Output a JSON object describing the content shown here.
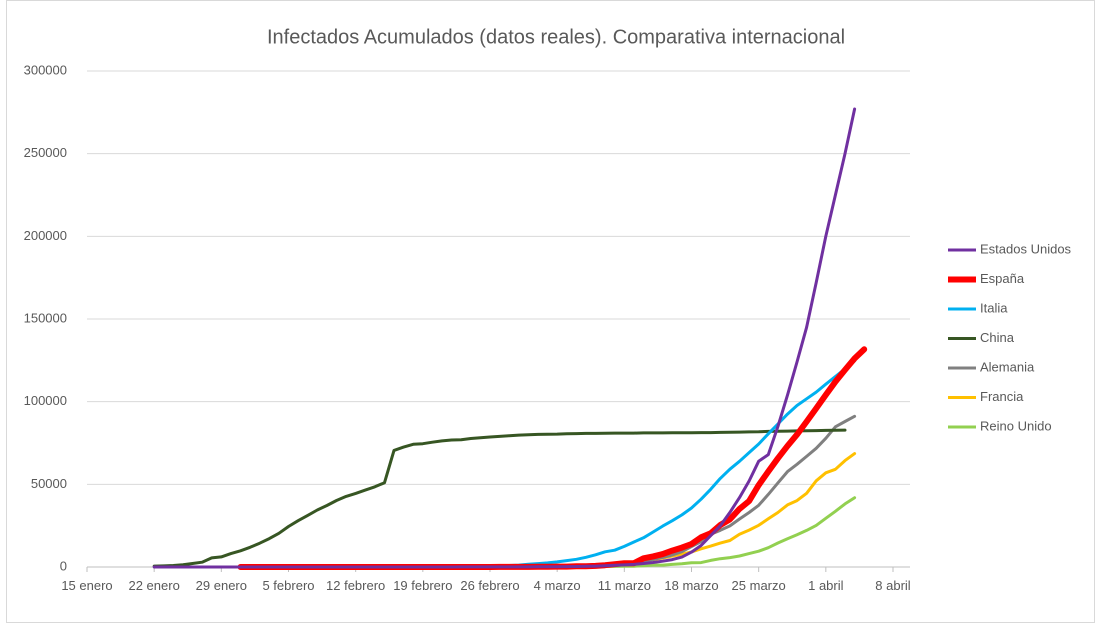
{
  "chart_data": {
    "type": "line",
    "title": "Infectados Acumulados (datos reales). Comparativa internacional",
    "categories": [
      "15 enero",
      null,
      null,
      null,
      null,
      null,
      null,
      "22 enero",
      null,
      null,
      null,
      null,
      null,
      null,
      "29 enero",
      null,
      null,
      null,
      null,
      null,
      null,
      "5 febrero",
      null,
      null,
      null,
      null,
      null,
      null,
      "12 febrero",
      null,
      null,
      null,
      null,
      null,
      null,
      "19 febrero",
      null,
      null,
      null,
      null,
      null,
      null,
      "26 febrero",
      null,
      null,
      null,
      null,
      null,
      null,
      "4 marzo",
      null,
      null,
      null,
      null,
      null,
      null,
      "11 marzo",
      null,
      null,
      null,
      null,
      null,
      null,
      "18 marzo",
      null,
      null,
      null,
      null,
      null,
      null,
      "25 marzo",
      null,
      null,
      null,
      null,
      null,
      null,
      "1 abril",
      null,
      null,
      null,
      null,
      null,
      null,
      "8 abril"
    ],
    "ylim": [
      0,
      300000
    ],
    "yticks": [
      0,
      50000,
      100000,
      150000,
      200000,
      250000,
      300000
    ],
    "grid": true,
    "legend": "right",
    "series": [
      {
        "name": "Estados Unidos",
        "color": "#7030a0",
        "line_width": 3,
        "values": [
          null,
          null,
          null,
          null,
          null,
          null,
          null,
          1,
          1,
          2,
          2,
          5,
          5,
          5,
          5,
          5,
          6,
          7,
          8,
          11,
          11,
          11,
          12,
          12,
          12,
          12,
          12,
          13,
          13,
          14,
          14,
          15,
          15,
          15,
          15,
          15,
          15,
          15,
          15,
          35,
          35,
          35,
          53,
          57,
          60,
          60,
          75,
          100,
          120,
          160,
          220,
          320,
          430,
          540,
          700,
          1000,
          1300,
          1600,
          2100,
          2700,
          3500,
          4500,
          6000,
          9000,
          13000,
          19000,
          25000,
          33000,
          42000,
          52000,
          64000,
          68000,
          85000,
          104000,
          124000,
          145000,
          172000,
          200000,
          225000,
          250000,
          277000,
          null,
          null,
          null,
          null
        ]
      },
      {
        "name": "España",
        "color": "#ff0000",
        "line_width": 6,
        "values": [
          null,
          null,
          null,
          null,
          null,
          null,
          null,
          null,
          null,
          null,
          null,
          null,
          null,
          null,
          null,
          null,
          1,
          1,
          1,
          1,
          1,
          1,
          1,
          1,
          1,
          2,
          2,
          2,
          2,
          2,
          2,
          2,
          2,
          2,
          2,
          2,
          2,
          2,
          2,
          2,
          6,
          13,
          15,
          32,
          45,
          66,
          84,
          120,
          165,
          222,
          259,
          400,
          500,
          673,
          1073,
          1695,
          2277,
          2277,
          5232,
          6391,
          7798,
          9942,
          11748,
          13910,
          17963,
          20410,
          25374,
          28768,
          35136,
          39885,
          49515,
          57786,
          65719,
          73235,
          80110,
          87956,
          95923,
          104118,
          112065,
          119199,
          126168,
          131646,
          null,
          null,
          null
        ]
      },
      {
        "name": "Italia",
        "color": "#00b0f0",
        "line_width": 3,
        "values": [
          null,
          null,
          null,
          null,
          null,
          null,
          null,
          null,
          null,
          null,
          null,
          null,
          null,
          null,
          null,
          null,
          3,
          3,
          3,
          3,
          3,
          3,
          3,
          3,
          3,
          3,
          3,
          3,
          3,
          3,
          3,
          3,
          3,
          3,
          3,
          3,
          3,
          20,
          62,
          155,
          229,
          322,
          453,
          655,
          888,
          1128,
          1694,
          2036,
          2502,
          3089,
          3858,
          4636,
          5883,
          7375,
          9172,
          10149,
          12462,
          15113,
          17660,
          21157,
          24747,
          27980,
          31506,
          35713,
          41035,
          47021,
          53578,
          59138,
          63927,
          69176,
          74386,
          80589,
          86498,
          92472,
          97689,
          101739,
          105792,
          110574,
          115242,
          119827,
          124632,
          null,
          null,
          null,
          null
        ]
      },
      {
        "name": "China",
        "color": "#375623",
        "line_width": 3,
        "values": [
          null,
          null,
          null,
          null,
          null,
          null,
          null,
          550,
          650,
          900,
          1400,
          2100,
          2900,
          5500,
          6100,
          8100,
          9800,
          11900,
          14400,
          17200,
          20400,
          24500,
          28000,
          31200,
          34500,
          37200,
          40200,
          42700,
          44500,
          46500,
          48500,
          51000,
          70500,
          72500,
          74200,
          74600,
          75500,
          76300,
          76800,
          77000,
          77700,
          78200,
          78600,
          79000,
          79400,
          79800,
          80000,
          80200,
          80300,
          80400,
          80600,
          80700,
          80800,
          80800,
          80900,
          81000,
          81000,
          81000,
          81100,
          81100,
          81100,
          81200,
          81200,
          81200,
          81300,
          81300,
          81400,
          81500,
          81600,
          81700,
          81800,
          82000,
          82100,
          82200,
          82300,
          82400,
          82500,
          82600,
          82700,
          82800,
          null,
          null,
          null,
          null,
          null
        ]
      },
      {
        "name": "Alemania",
        "color": "#808080",
        "line_width": 3,
        "values": [
          null,
          null,
          null,
          null,
          null,
          null,
          null,
          null,
          null,
          null,
          null,
          null,
          1,
          4,
          4,
          4,
          5,
          8,
          10,
          12,
          12,
          12,
          12,
          13,
          14,
          14,
          16,
          16,
          16,
          16,
          16,
          16,
          16,
          16,
          16,
          16,
          16,
          16,
          16,
          16,
          16,
          18,
          27,
          46,
          48,
          79,
          130,
          159,
          196,
          262,
          482,
          670,
          799,
          1040,
          1176,
          1457,
          1908,
          2078,
          3675,
          4585,
          5795,
          7272,
          9257,
          12327,
          15320,
          19848,
          22213,
          24873,
          29056,
          32986,
          37323,
          43938,
          50871,
          57695,
          62095,
          66885,
          71808,
          77872,
          84794,
          88000,
          91159,
          null,
          null,
          null,
          null
        ]
      },
      {
        "name": "Francia",
        "color": "#ffc000",
        "line_width": 3,
        "values": [
          null,
          null,
          null,
          null,
          null,
          null,
          null,
          null,
          null,
          2,
          3,
          3,
          3,
          4,
          5,
          5,
          5,
          6,
          6,
          6,
          6,
          6,
          6,
          11,
          11,
          11,
          11,
          11,
          11,
          11,
          12,
          12,
          12,
          12,
          12,
          12,
          12,
          12,
          12,
          12,
          12,
          14,
          18,
          38,
          57,
          100,
          130,
          191,
          204,
          285,
          377,
          653,
          949,
          1126,
          1209,
          1784,
          2281,
          2876,
          3661,
          4499,
          5423,
          6633,
          7730,
          9134,
          10995,
          12612,
          14459,
          16018,
          19856,
          22304,
          25233,
          29155,
          32964,
          37575,
          40174,
          44550,
          52128,
          56989,
          59105,
          64338,
          68605,
          null,
          null,
          null,
          null
        ]
      },
      {
        "name": "Reino Unido",
        "color": "#92d050",
        "line_width": 3,
        "values": [
          null,
          null,
          null,
          null,
          null,
          null,
          null,
          null,
          null,
          null,
          null,
          null,
          null,
          null,
          null,
          null,
          2,
          2,
          2,
          2,
          2,
          2,
          2,
          3,
          3,
          8,
          8,
          8,
          8,
          9,
          9,
          9,
          9,
          9,
          9,
          9,
          9,
          9,
          9,
          9,
          13,
          13,
          16,
          20,
          23,
          23,
          36,
          40,
          51,
          85,
          115,
          163,
          206,
          273,
          321,
          382,
          456,
          456,
          798,
          1140,
          1140,
          1543,
          1950,
          2626,
          2689,
          3983,
          5018,
          5683,
          6650,
          8077,
          9529,
          11658,
          14543,
          17089,
          19522,
          22141,
          25150,
          29474,
          33718,
          38168,
          41903,
          null,
          null,
          null,
          null
        ]
      }
    ]
  }
}
